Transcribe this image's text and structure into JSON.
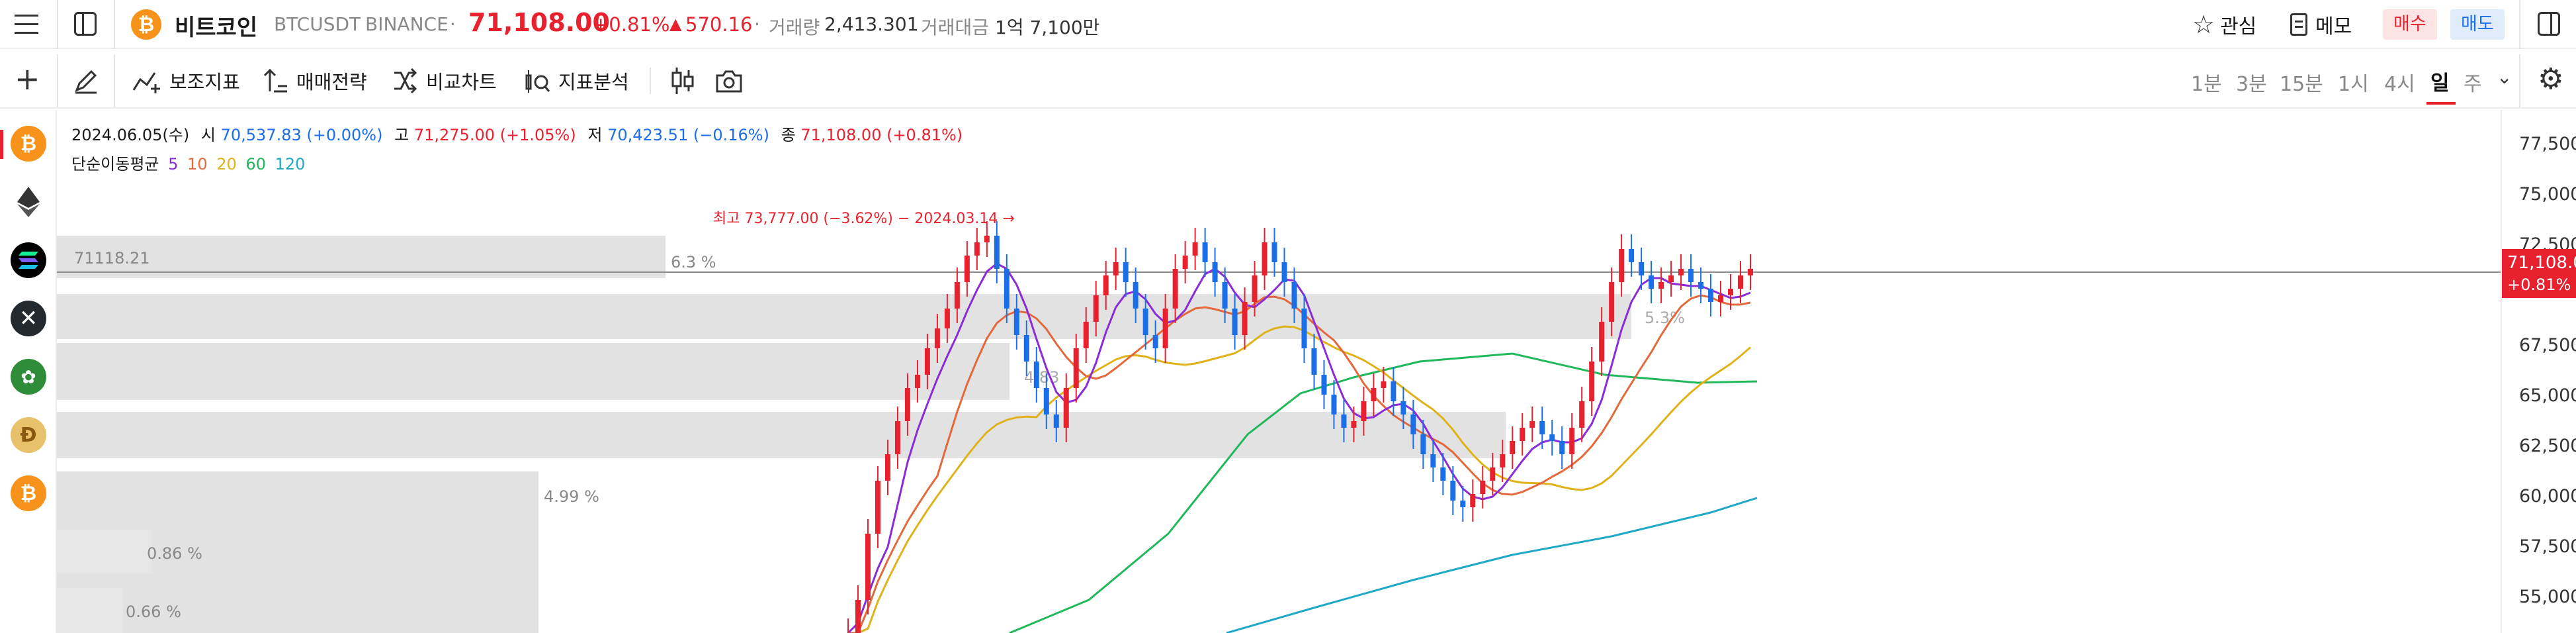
{
  "header": {
    "menu_icon": "hamburger-icon",
    "layout_icon": "panel-icon",
    "coin_icon": "bitcoin-icon",
    "coin_name": "비트코인",
    "symbol": "BTCUSDT",
    "exchange": "BINANCE",
    "dot": "·",
    "price": "71,108.00",
    "change_pct": "+0.81%",
    "change_arrow": "▲",
    "change_abs": "570.16",
    "volume_label": "거래량",
    "volume_value": "2,413.301",
    "turnover_label": "거래대금",
    "turnover_value": "1억 7,100만",
    "watch_label": "관심",
    "memo_label": "메모",
    "buy_label": "매수",
    "sell_label": "매도",
    "colors": {
      "up": "#e8212e",
      "down": "#1a6ee8",
      "buy_bg": "#fde3e4",
      "sell_bg": "#e1ecfb"
    }
  },
  "toolbar": {
    "add_icon": "plus-icon",
    "draw_icon": "pen-icon",
    "indicator_label": "보조지표",
    "strategy_label": "매매전략",
    "compare_label": "비교차트",
    "analysis_label": "지표분석",
    "timeframes": [
      "1분",
      "3분",
      "15분",
      "1시",
      "4시",
      "일",
      "주"
    ],
    "active_timeframe": "일",
    "more_icon": "chevron-down-icon",
    "settings_icon": "gear-icon"
  },
  "legend": {
    "date": "2024.06.05(수)",
    "open_label": "시",
    "open_value": "70,537.83 (+0.00%)",
    "high_label": "고",
    "high_value": "71,275.00 (+1.05%)",
    "low_label": "저",
    "low_value": "70,423.51 (−0.16%)",
    "close_label": "종",
    "close_value": "71,108.00 (+0.81%)",
    "ma_label": "단순이동평균",
    "ma_periods": [
      "5",
      "10",
      "20",
      "60",
      "120"
    ],
    "ma_colors": [
      "#8b2cd6",
      "#e3693c",
      "#e0b21a",
      "#20b85a",
      "#1fa9c7"
    ]
  },
  "annotation": {
    "high_marker": "최고 73,777.00 (−3.62%) − 2024.03.14 →"
  },
  "volume_profile": {
    "bars": [
      {
        "label": "71118.21",
        "pct": "6.3 %"
      },
      {
        "label": "",
        "pct": ""
      },
      {
        "label": "",
        "pct": ""
      },
      {
        "label": "",
        "pct": "4.99 %"
      },
      {
        "label": "",
        "pct": "0.86 %"
      },
      {
        "label": "",
        "pct": "0.66 %"
      }
    ]
  },
  "price_axis": {
    "ticks": [
      "77,500.00",
      "75,000.00",
      "72,500.00",
      "67,500.00",
      "65,000.00",
      "62,500.00",
      "60,000.00",
      "57,500.00",
      "55,000.00"
    ],
    "current_price": "71,108.00",
    "current_change": "+0.81%"
  },
  "rail": {
    "icons": [
      "bitcoin-icon",
      "ethereum-icon",
      "solana-icon",
      "xrp-icon",
      "token-icon",
      "doge-icon",
      "bitcoin-icon"
    ]
  }
}
